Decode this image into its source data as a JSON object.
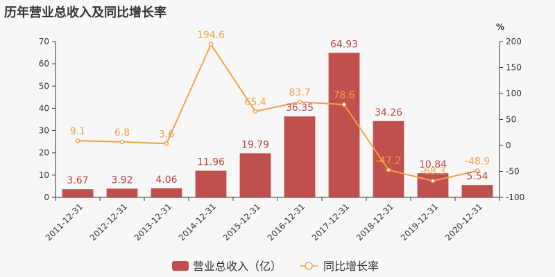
{
  "chart_data": {
    "type": "bar",
    "title": "历年营业总收入及同比增长率",
    "categories": [
      "2011-12-31",
      "2012-12-31",
      "2013-12-31",
      "2014-12-31",
      "2015-12-31",
      "2016-12-31",
      "2017-12-31",
      "2018-12-31",
      "2019-12-31",
      "2020-12-31"
    ],
    "series": [
      {
        "name": "营业总收入（亿）",
        "type": "bar",
        "axis": "left",
        "color": "#c0504d",
        "values": [
          3.67,
          3.92,
          4.06,
          11.96,
          19.79,
          36.35,
          64.93,
          34.26,
          10.84,
          5.54
        ],
        "labels": [
          "3.67",
          "3.92",
          "4.06",
          "11.96",
          "19.79",
          "36.35",
          "64.93",
          "34.26",
          "10.84",
          "5.54"
        ]
      },
      {
        "name": "同比增长率",
        "type": "line",
        "axis": "right",
        "color": "#f59f4a",
        "values": [
          9.1,
          6.8,
          3.6,
          194.6,
          65.4,
          83.7,
          78.6,
          -47.2,
          -68.3,
          -48.9
        ],
        "labels": [
          "9.1",
          "6.8",
          "3.6",
          "194.6",
          "65.4",
          "83.7",
          "78.6",
          "-47.2",
          "-68.3",
          "-48.9"
        ]
      }
    ],
    "y_left": {
      "min": 0,
      "max": 70,
      "ticks": [
        "0",
        "10",
        "20",
        "30",
        "40",
        "50",
        "60",
        "70"
      ]
    },
    "y_right": {
      "min": -100,
      "max": 200,
      "unit": "%",
      "ticks": [
        "-100",
        "-50",
        "0",
        "50",
        "100",
        "150",
        "200"
      ]
    },
    "grid": false,
    "legend_position": "bottom-center"
  }
}
